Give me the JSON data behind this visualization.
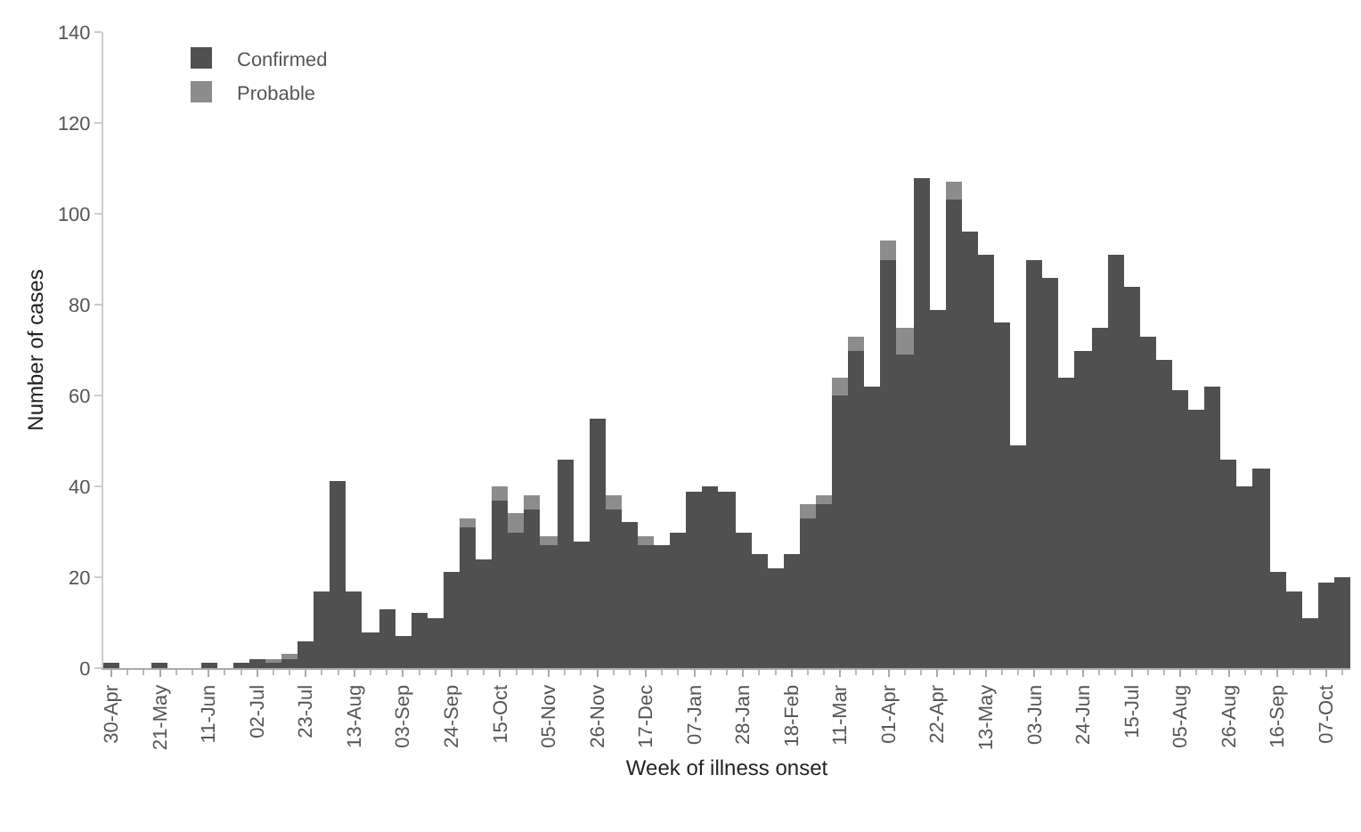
{
  "chart_data": {
    "type": "bar",
    "stacked": true,
    "xlabel": "Week of illness onset",
    "ylabel": "Number of cases",
    "categories": [
      "30-Apr",
      null,
      null,
      "21-May",
      null,
      null,
      "11-Jun",
      null,
      null,
      "02-Jul",
      null,
      null,
      "23-Jul",
      null,
      null,
      "13-Aug",
      null,
      null,
      "03-Sep",
      null,
      null,
      "24-Sep",
      null,
      null,
      "15-Oct",
      null,
      null,
      "05-Nov",
      null,
      null,
      "26-Nov",
      null,
      null,
      "17-Dec",
      null,
      null,
      "07-Jan",
      null,
      null,
      "28-Jan",
      null,
      null,
      "18-Feb",
      null,
      null,
      "11-Mar",
      null,
      null,
      "01-Apr",
      null,
      null,
      "22-Apr",
      null,
      null,
      "13-May",
      null,
      null,
      "03-Jun",
      null,
      null,
      "24-Jun",
      null,
      null,
      "15-Jul",
      null,
      null,
      "05-Aug",
      null,
      null,
      "26-Aug",
      null,
      null,
      "16-Sep",
      null,
      null,
      "07-Oct",
      null
    ],
    "series": [
      {
        "name": "Confirmed",
        "color": "#505050",
        "values": [
          1,
          0,
          0,
          1,
          0,
          0,
          1,
          0,
          1,
          2,
          1,
          2,
          6,
          17,
          41,
          17,
          8,
          13,
          7,
          12,
          11,
          21,
          31,
          24,
          37,
          30,
          35,
          27,
          46,
          28,
          55,
          35,
          32,
          27,
          27,
          30,
          39,
          40,
          39,
          30,
          25,
          22,
          25,
          33,
          36,
          60,
          70,
          62,
          90,
          69,
          108,
          79,
          103,
          96,
          91,
          76,
          49,
          90,
          86,
          64,
          70,
          75,
          91,
          84,
          73,
          68,
          61,
          57,
          62,
          46,
          40,
          44,
          21,
          17,
          11,
          19,
          20
        ]
      },
      {
        "name": "Probable",
        "color": "#8c8c8c",
        "values": [
          0,
          0,
          0,
          0,
          0,
          0,
          0,
          0,
          0,
          0,
          1,
          1,
          0,
          0,
          0,
          0,
          0,
          0,
          0,
          0,
          0,
          0,
          2,
          0,
          3,
          4,
          3,
          2,
          0,
          0,
          0,
          3,
          0,
          2,
          0,
          0,
          0,
          0,
          0,
          0,
          0,
          0,
          0,
          3,
          2,
          4,
          3,
          0,
          4,
          6,
          0,
          0,
          4,
          0,
          0,
          0,
          0,
          0,
          0,
          0,
          0,
          0,
          0,
          0,
          0,
          0,
          0,
          0,
          0,
          0,
          0,
          0,
          0,
          0,
          0,
          0,
          0
        ]
      }
    ],
    "ylim": [
      0,
      140
    ],
    "yticks": [
      0,
      20,
      40,
      60,
      80,
      100,
      120,
      140
    ],
    "legend": "top left"
  }
}
